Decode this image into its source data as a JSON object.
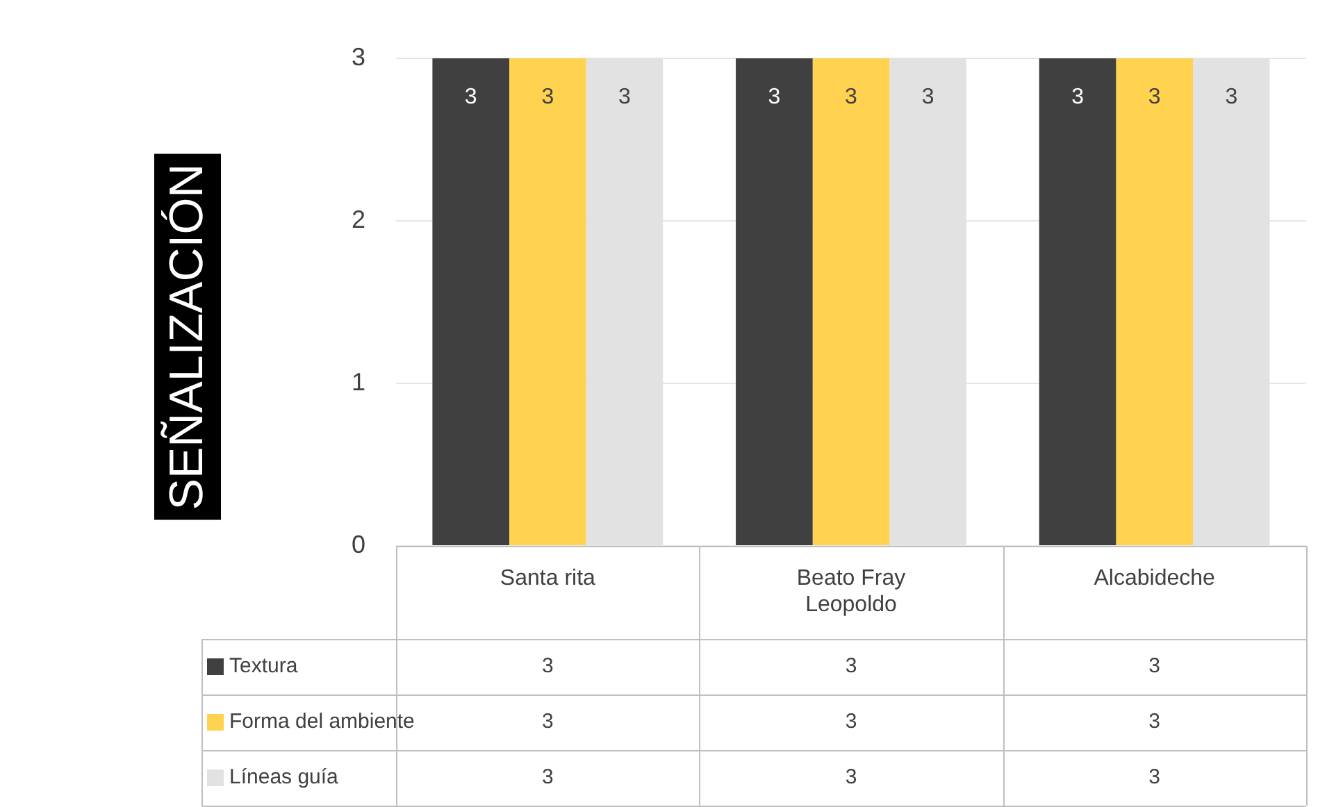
{
  "chart_data": {
    "type": "bar",
    "ylabel": "SEÑALIZACIÓN",
    "categories": [
      "Santa rita",
      "Beato Fray Leopoldo",
      "Alcabideche"
    ],
    "series": [
      {
        "name": "Textura",
        "color": "#404040",
        "values": [
          3,
          3,
          3
        ]
      },
      {
        "name": "Forma del ambiente",
        "color": "#ffd34f",
        "values": [
          3,
          3,
          3
        ]
      },
      {
        "name": "Líneas guía",
        "color": "#e2e2e2",
        "values": [
          3,
          3,
          3
        ]
      }
    ],
    "annotations": [
      "3",
      "3",
      "3",
      "3",
      "3",
      "3",
      "3",
      "3",
      "3"
    ],
    "ylim": [
      0,
      3
    ],
    "yticks": [
      0,
      1,
      2,
      3
    ],
    "grid": "y",
    "legend": "bottom",
    "data_labels": true
  }
}
